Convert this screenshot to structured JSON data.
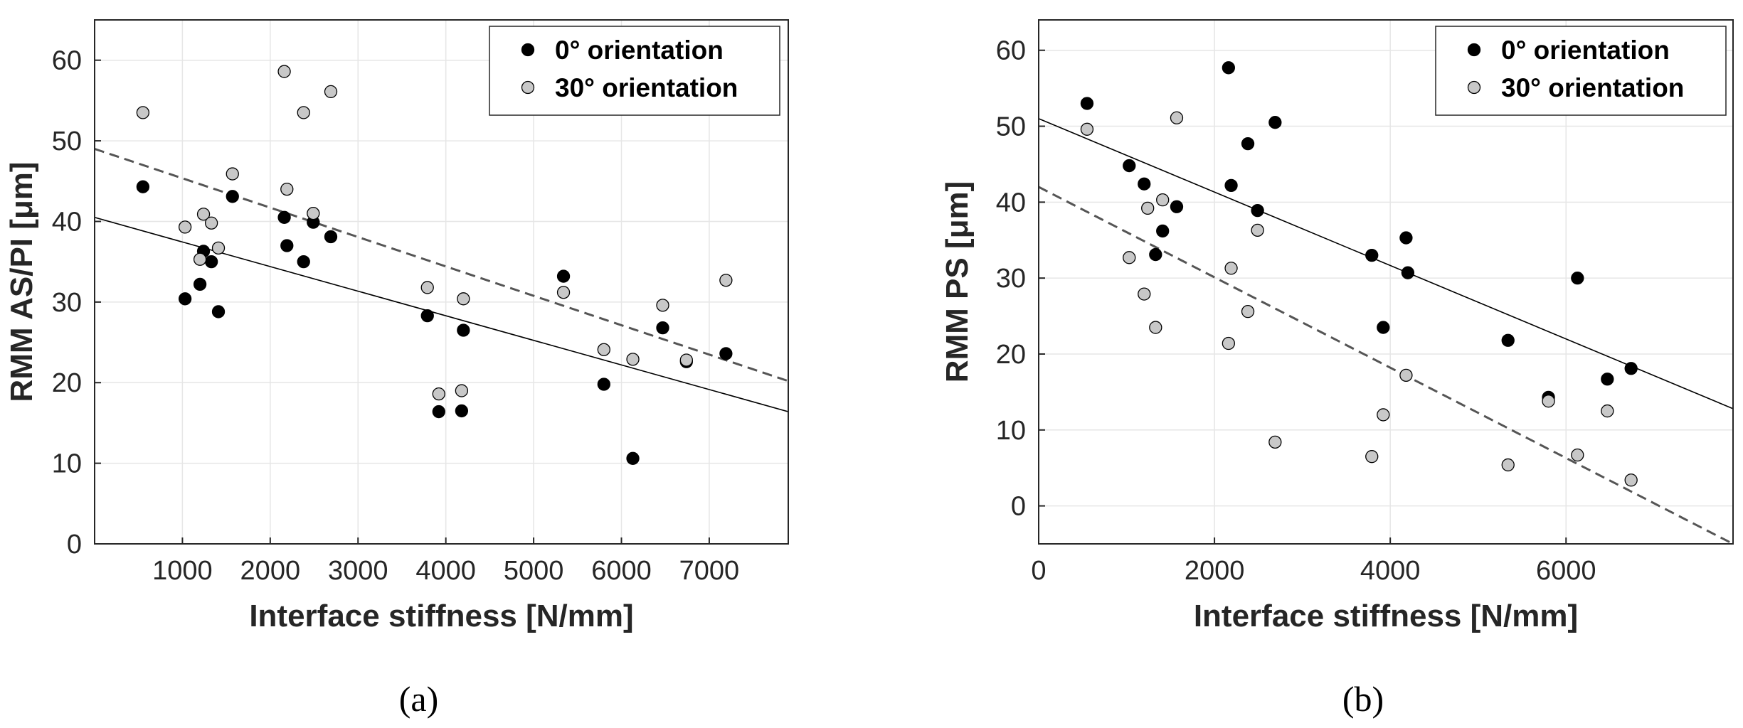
{
  "chart_data": [
    {
      "type": "scatter",
      "caption": "(a)",
      "xlabel": "Interface stiffness [N/mm]",
      "ylabel": "RMM AS/PI [μm]",
      "xlim": [
        0,
        7900
      ],
      "ylim": [
        0,
        65
      ],
      "xticks": [
        1000,
        2000,
        3000,
        4000,
        5000,
        6000,
        7000
      ],
      "yticks": [
        0,
        10,
        20,
        30,
        40,
        50,
        60
      ],
      "grid": true,
      "legend_position": "top-right",
      "series": [
        {
          "name": "0° orientation",
          "color": "#000000",
          "points": [
            [
              550,
              44.3
            ],
            [
              1030,
              30.4
            ],
            [
              1200,
              32.2
            ],
            [
              1240,
              36.3
            ],
            [
              1330,
              35.0
            ],
            [
              1410,
              28.8
            ],
            [
              1570,
              43.1
            ],
            [
              2160,
              40.5
            ],
            [
              2190,
              37.0
            ],
            [
              2380,
              35.0
            ],
            [
              2490,
              39.9
            ],
            [
              2690,
              38.1
            ],
            [
              3790,
              28.3
            ],
            [
              3920,
              16.4
            ],
            [
              4180,
              16.5
            ],
            [
              4200,
              26.5
            ],
            [
              5340,
              33.2
            ],
            [
              5800,
              19.8
            ],
            [
              6130,
              10.6
            ],
            [
              6470,
              26.8
            ],
            [
              6740,
              22.6
            ],
            [
              7190,
              23.6
            ]
          ],
          "fit": {
            "style": "solid",
            "x": [
              0,
              7900
            ],
            "y": [
              40.5,
              16.4
            ]
          }
        },
        {
          "name": "30° orientation",
          "color": "#c8c8c8",
          "points": [
            [
              550,
              53.5
            ],
            [
              1030,
              39.3
            ],
            [
              1200,
              35.3
            ],
            [
              1240,
              40.9
            ],
            [
              1330,
              39.8
            ],
            [
              1410,
              36.7
            ],
            [
              1570,
              45.9
            ],
            [
              2160,
              58.6
            ],
            [
              2190,
              44.0
            ],
            [
              2380,
              53.5
            ],
            [
              2490,
              41.0
            ],
            [
              2690,
              56.1
            ],
            [
              3790,
              31.8
            ],
            [
              3920,
              18.6
            ],
            [
              4180,
              19.0
            ],
            [
              4200,
              30.4
            ],
            [
              5340,
              31.2
            ],
            [
              5800,
              24.1
            ],
            [
              6130,
              22.9
            ],
            [
              6470,
              29.6
            ],
            [
              6740,
              22.8
            ],
            [
              7190,
              32.7
            ]
          ],
          "fit": {
            "style": "dashed",
            "x": [
              0,
              7900
            ],
            "y": [
              49.0,
              20.2
            ]
          }
        }
      ]
    },
    {
      "type": "scatter",
      "caption": "(b)",
      "xlabel": "Interface stiffness [N/mm]",
      "ylabel": "RMM PS [μm]",
      "xlim": [
        0,
        7900
      ],
      "ylim": [
        -5,
        64
      ],
      "xticks": [
        0,
        2000,
        4000,
        6000
      ],
      "yticks": [
        0,
        10,
        20,
        30,
        40,
        50,
        60
      ],
      "grid": true,
      "legend_position": "top-right",
      "series": [
        {
          "name": "0° orientation",
          "color": "#000000",
          "points": [
            [
              550,
              53.0
            ],
            [
              1030,
              44.8
            ],
            [
              1200,
              42.4
            ],
            [
              1330,
              33.1
            ],
            [
              1410,
              36.2
            ],
            [
              1570,
              39.4
            ],
            [
              2160,
              57.7
            ],
            [
              2190,
              42.2
            ],
            [
              2380,
              47.7
            ],
            [
              2490,
              38.9
            ],
            [
              2690,
              50.5
            ],
            [
              3790,
              33.0
            ],
            [
              3920,
              23.5
            ],
            [
              4180,
              35.3
            ],
            [
              4200,
              30.7
            ],
            [
              5340,
              21.8
            ],
            [
              5800,
              14.3
            ],
            [
              6130,
              30.0
            ],
            [
              6470,
              16.7
            ],
            [
              6740,
              18.1
            ]
          ],
          "fit": {
            "style": "solid",
            "x": [
              0,
              7900
            ],
            "y": [
              51.0,
              12.8
            ]
          }
        },
        {
          "name": "30° orientation",
          "color": "#c8c8c8",
          "points": [
            [
              550,
              49.6
            ],
            [
              1030,
              32.7
            ],
            [
              1200,
              27.9
            ],
            [
              1240,
              39.2
            ],
            [
              1330,
              23.5
            ],
            [
              1410,
              40.3
            ],
            [
              1570,
              51.1
            ],
            [
              2160,
              21.4
            ],
            [
              2190,
              31.3
            ],
            [
              2380,
              25.6
            ],
            [
              2490,
              36.3
            ],
            [
              2690,
              8.4
            ],
            [
              3790,
              6.5
            ],
            [
              3920,
              12.0
            ],
            [
              4180,
              17.2
            ],
            [
              5340,
              5.4
            ],
            [
              5800,
              13.8
            ],
            [
              6130,
              6.7
            ],
            [
              6470,
              12.5
            ],
            [
              6740,
              3.4
            ]
          ],
          "fit": {
            "style": "dashed",
            "x": [
              0,
              7900
            ],
            "y": [
              42.0,
              -5.0
            ]
          }
        }
      ]
    }
  ]
}
